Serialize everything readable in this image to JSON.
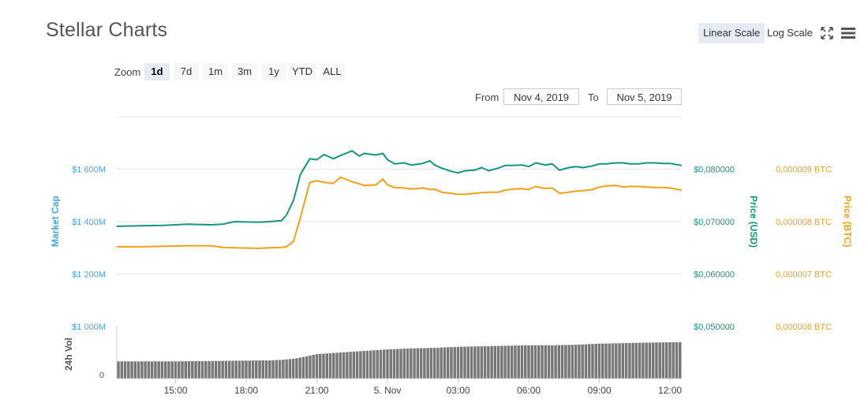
{
  "title": "Stellar Charts",
  "toolbar": {
    "linear_scale": "Linear Scale",
    "log_scale": "Log Scale",
    "active_scale": "Linear Scale"
  },
  "zoom": {
    "label": "Zoom",
    "buttons": [
      "1d",
      "7d",
      "1m",
      "3m",
      "1y",
      "YTD",
      "ALL"
    ],
    "active": "1d"
  },
  "range": {
    "from_label": "From",
    "from_value": "Nov 4, 2019",
    "to_label": "To",
    "to_value": "Nov 5, 2019"
  },
  "colors": {
    "market_cap": "#4aa3df",
    "price_usd": "#14967d",
    "price_btc": "#f5a01a",
    "volume": "#777777",
    "grid": "#e6e6e6"
  },
  "chart_data": {
    "type": "line",
    "x_tick_labels": [
      "15:00",
      "18:00",
      "21:00",
      "5. Nov",
      "03:00",
      "06:00",
      "09:00",
      "12:00"
    ],
    "x_ticks": [
      3,
      6,
      9,
      12,
      15,
      18,
      21,
      24
    ],
    "x_range": [
      0.5,
      24.5
    ],
    "left_axis": {
      "label": "Market Cap",
      "tick_labels": [
        "$1 000M",
        "$1 200M",
        "$1 400M",
        "$1 600M"
      ],
      "ticks": [
        1000,
        1200,
        1400,
        1600
      ],
      "range": [
        1000,
        1800
      ]
    },
    "right_axis_usd": {
      "label": "Price (USD)",
      "tick_labels": [
        "$0,050000",
        "$0,060000",
        "$0,070000",
        "$0,080000"
      ],
      "ticks": [
        0.05,
        0.06,
        0.07,
        0.08
      ],
      "range": [
        0.05,
        0.09
      ]
    },
    "right_axis_btc": {
      "label": "Price (BTC)",
      "tick_labels": [
        "0,000006 BTC",
        "0,000007 BTC",
        "0,000008 BTC",
        "0,000009 BTC"
      ],
      "ticks": [
        6e-06,
        7e-06,
        8e-06,
        9e-06
      ],
      "range": [
        6e-06,
        1e-05
      ]
    },
    "volume_axis": {
      "label": "24h Vol",
      "tick_labels": [
        "0"
      ],
      "ticks": [
        0
      ],
      "range": [
        0,
        1
      ]
    },
    "series": [
      {
        "name": "Price (USD)",
        "axis": "usd",
        "x": [
          0.5,
          1.5,
          2.5,
          3.5,
          4.5,
          5,
          5.5,
          6.5,
          7,
          7.5,
          7.7,
          8,
          8.3,
          8.7,
          9,
          9.3,
          9.7,
          10,
          10.5,
          10.8,
          11,
          11.5,
          11.8,
          12,
          12.3,
          12.7,
          13,
          13.5,
          13.8,
          14,
          14.3,
          14.7,
          15,
          15.3,
          15.7,
          16,
          16.3,
          16.7,
          17,
          17.3,
          17.7,
          18,
          18.3,
          18.7,
          19,
          19.3,
          19.7,
          20,
          20.3,
          20.7,
          21,
          21.3,
          21.7,
          22,
          22.3,
          22.7,
          23,
          23.3,
          23.7,
          24,
          24.5
        ],
        "values": [
          0.0691,
          0.0692,
          0.0693,
          0.0695,
          0.0694,
          0.0695,
          0.07,
          0.0699,
          0.07,
          0.0702,
          0.0712,
          0.074,
          0.079,
          0.082,
          0.0818,
          0.0828,
          0.082,
          0.0826,
          0.0835,
          0.0825,
          0.083,
          0.0827,
          0.083,
          0.0818,
          0.081,
          0.0812,
          0.0808,
          0.0811,
          0.0816,
          0.0808,
          0.0802,
          0.0796,
          0.0793,
          0.0797,
          0.0798,
          0.0803,
          0.0797,
          0.0802,
          0.0807,
          0.0807,
          0.0808,
          0.0805,
          0.0812,
          0.0808,
          0.081,
          0.0798,
          0.0803,
          0.0805,
          0.0803,
          0.0806,
          0.081,
          0.081,
          0.0812,
          0.0812,
          0.081,
          0.081,
          0.0812,
          0.0812,
          0.0811,
          0.0811,
          0.0807
        ]
      },
      {
        "name": "Price (BTC)",
        "axis": "btc",
        "x": [
          0.5,
          1.5,
          2.5,
          3.5,
          4.5,
          5,
          5.5,
          6.5,
          7,
          7.5,
          7.7,
          8,
          8.3,
          8.7,
          9,
          9.3,
          9.7,
          10,
          10.5,
          10.8,
          11,
          11.5,
          11.8,
          12,
          12.3,
          12.7,
          13,
          13.5,
          13.8,
          14,
          14.3,
          14.7,
          15,
          15.3,
          15.7,
          16,
          16.3,
          16.7,
          17,
          17.3,
          17.7,
          18,
          18.3,
          18.7,
          19,
          19.3,
          19.7,
          20,
          20.3,
          20.7,
          21,
          21.3,
          21.7,
          22,
          22.3,
          22.7,
          23,
          23.3,
          23.7,
          24,
          24.5
        ],
        "values": [
          7.52e-06,
          7.52e-06,
          7.53e-06,
          7.54e-06,
          7.54e-06,
          7.51e-06,
          7.5e-06,
          7.49e-06,
          7.5e-06,
          7.51e-06,
          7.52e-06,
          7.62e-06,
          8.08e-06,
          8.75e-06,
          8.78e-06,
          8.75e-06,
          8.73e-06,
          8.85e-06,
          8.76e-06,
          8.72e-06,
          8.69e-06,
          8.7e-06,
          8.81e-06,
          8.7e-06,
          8.65e-06,
          8.64e-06,
          8.62e-06,
          8.64e-06,
          8.61e-06,
          8.62e-06,
          8.56e-06,
          8.54e-06,
          8.52e-06,
          8.52e-06,
          8.54e-06,
          8.55e-06,
          8.56e-06,
          8.56e-06,
          8.6e-06,
          8.62e-06,
          8.63e-06,
          8.61e-06,
          8.67e-06,
          8.63e-06,
          8.64e-06,
          8.54e-06,
          8.56e-06,
          8.58e-06,
          8.59e-06,
          8.61e-06,
          8.66e-06,
          8.68e-06,
          8.69e-06,
          8.66e-06,
          8.67e-06,
          8.67e-06,
          8.66e-06,
          8.65e-06,
          8.65e-06,
          8.64e-06,
          8.6e-06
        ]
      },
      {
        "name": "24h Vol",
        "axis": "volume",
        "x": [
          0.5,
          3,
          5,
          7,
          7.5,
          8,
          8.5,
          9,
          10,
          11,
          12,
          13,
          14,
          15,
          16,
          17,
          18,
          19,
          20,
          21,
          22,
          23,
          24.5
        ],
        "values": [
          0.33,
          0.33,
          0.34,
          0.35,
          0.36,
          0.38,
          0.42,
          0.47,
          0.5,
          0.53,
          0.56,
          0.58,
          0.59,
          0.61,
          0.62,
          0.63,
          0.64,
          0.64,
          0.65,
          0.67,
          0.68,
          0.69,
          0.7
        ]
      }
    ]
  }
}
